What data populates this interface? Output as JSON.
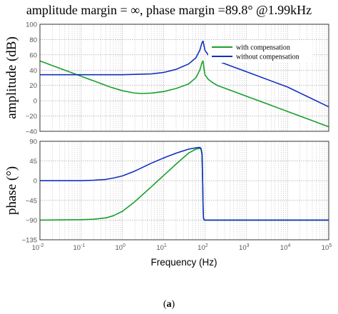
{
  "title": "amplitude margin = ∞, phase margin =89.8° @1.99kHz",
  "caption": {
    "open": "(",
    "letter": "a",
    "close": ")"
  },
  "chart_data": [
    {
      "type": "line",
      "panel": "amplitude",
      "xscale": "log",
      "xlim": [
        0.01,
        100000
      ],
      "ylim": [
        -40,
        100
      ],
      "yticks": [
        "100",
        "80",
        "60",
        "40",
        "20",
        "0",
        "−20",
        "−40"
      ],
      "ylabel": "amplitude (dB)",
      "grid": true,
      "legend_position": "top-right",
      "series": [
        {
          "name": "with compensation",
          "color": "#1aa02a",
          "x": [
            0.01,
            0.02,
            0.05,
            0.1,
            0.2,
            0.5,
            1,
            2,
            3,
            5,
            10,
            20,
            40,
            60,
            75,
            85,
            90,
            95,
            100,
            120,
            150,
            200,
            500,
            1000,
            10000,
            100000
          ],
          "y": [
            52,
            46,
            38,
            32,
            26,
            18,
            13,
            10,
            9.5,
            10,
            12,
            16,
            22,
            30,
            40,
            50,
            52,
            42,
            34,
            28,
            24,
            20,
            12,
            6,
            -14,
            -34
          ]
        },
        {
          "name": "without compensation",
          "color": "#1030c0",
          "x": [
            0.01,
            0.1,
            1,
            5,
            10,
            20,
            40,
            60,
            75,
            85,
            90,
            95,
            100,
            120,
            150,
            200,
            500,
            1000,
            10000,
            100000
          ],
          "y": [
            34,
            34,
            34,
            35,
            37,
            41,
            48,
            56,
            66,
            76,
            78,
            72,
            66,
            60,
            56,
            52,
            44,
            38,
            18,
            -8
          ]
        }
      ]
    },
    {
      "type": "line",
      "panel": "phase",
      "xscale": "log",
      "xlim": [
        0.01,
        100000
      ],
      "ylim": [
        -135,
        90
      ],
      "yticks": [
        "90",
        "45",
        "0",
        "−45",
        "−90",
        "−135"
      ],
      "ylabel": "phase (°)",
      "xlabel": "Frequency  (Hz)",
      "grid": true,
      "series": [
        {
          "name": "with compensation",
          "color": "#1aa02a",
          "x": [
            0.01,
            0.1,
            0.2,
            0.4,
            0.6,
            1,
            2,
            3,
            5,
            10,
            20,
            40,
            60,
            75,
            80,
            85,
            88,
            90,
            92,
            95,
            100,
            120,
            200,
            1000,
            10000,
            100000
          ],
          "y": [
            -90,
            -89,
            -88,
            -85,
            -80,
            -70,
            -48,
            -33,
            -14,
            12,
            38,
            63,
            72,
            74,
            72,
            60,
            0,
            -60,
            -85,
            -89,
            -90,
            -90,
            -90,
            -90,
            -90,
            -90
          ]
        },
        {
          "name": "without compensation",
          "color": "#1030c0",
          "x": [
            0.01,
            0.1,
            0.2,
            0.4,
            0.6,
            1,
            2,
            3,
            5,
            10,
            20,
            40,
            60,
            75,
            80,
            85,
            88,
            90,
            92,
            95,
            100,
            120,
            200,
            1000,
            10000,
            100000
          ],
          "y": [
            0,
            0,
            1,
            3,
            6,
            11,
            22,
            30,
            40,
            52,
            63,
            72,
            75,
            76,
            74,
            62,
            0,
            -60,
            -85,
            -89,
            -90,
            -90,
            -90,
            -90,
            -90,
            -90
          ]
        }
      ]
    }
  ],
  "xticks": [
    {
      "base": "10",
      "exp": "-2"
    },
    {
      "base": "10",
      "exp": "-1"
    },
    {
      "base": "10",
      "exp": "0"
    },
    {
      "base": "10",
      "exp": "1"
    },
    {
      "base": "10",
      "exp": "2"
    },
    {
      "base": "10",
      "exp": "3"
    },
    {
      "base": "10",
      "exp": "4"
    },
    {
      "base": "10",
      "exp": "5"
    }
  ]
}
